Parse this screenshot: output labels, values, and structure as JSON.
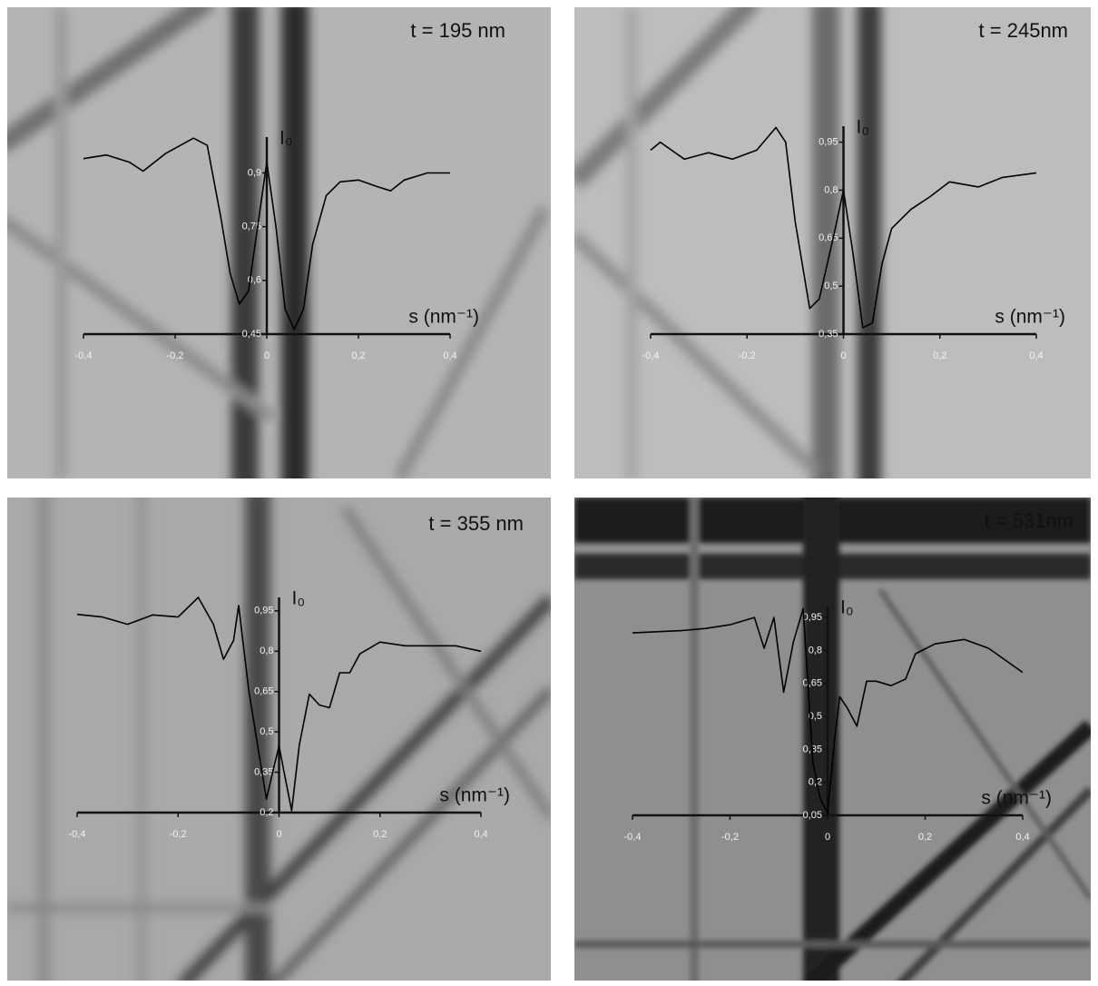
{
  "chart_data": [
    {
      "type": "line",
      "title": "t = 195 nm",
      "ylabel": "I₀",
      "xlabel": "s (nm⁻¹)",
      "color": "#000000",
      "x": [
        -0.4,
        -0.35,
        -0.3,
        -0.27,
        -0.22,
        -0.16,
        -0.13,
        -0.1,
        -0.08,
        -0.06,
        -0.04,
        -0.02,
        0,
        0.02,
        0.04,
        0.06,
        0.08,
        0.1,
        0.13,
        0.16,
        0.2,
        0.24,
        0.27,
        0.3,
        0.35,
        0.4
      ],
      "values": [
        0.94,
        0.95,
        0.93,
        0.905,
        0.955,
        0.997,
        0.977,
        0.774,
        0.62,
        0.534,
        0.57,
        0.75,
        0.93,
        0.75,
        0.52,
        0.463,
        0.52,
        0.7,
        0.837,
        0.875,
        0.88,
        0.862,
        0.85,
        0.88,
        0.9,
        0.9
      ],
      "xlim": [
        -0.4,
        0.4
      ],
      "ylim": [
        0.45,
        1.0
      ],
      "xticks": [
        {
          "value": -0.4,
          "label": "-0,4"
        },
        {
          "value": -0.2,
          "label": "-0,2"
        },
        0,
        {
          "value": 0.2,
          "label": "0,2"
        },
        {
          "value": 0.4,
          "label": "0,4"
        }
      ],
      "yticks": [
        {
          "value": 0.45,
          "label": "0,45"
        },
        {
          "value": 0.6,
          "label": "0,6"
        },
        {
          "value": 0.75,
          "label": "0,75"
        },
        {
          "value": 0.9,
          "label": "0,9"
        }
      ]
    },
    {
      "type": "line",
      "title": "t = 245nm",
      "ylabel": "I₀",
      "xlabel": "s (nm⁻¹)",
      "color": "#000000",
      "x": [
        -0.4,
        -0.38,
        -0.33,
        -0.28,
        -0.23,
        -0.18,
        -0.14,
        -0.12,
        -0.1,
        -0.07,
        -0.05,
        -0.02,
        0,
        0.02,
        0.04,
        0.06,
        0.08,
        0.1,
        0.14,
        0.18,
        0.22,
        0.28,
        0.33,
        0.4
      ],
      "values": [
        0.925,
        0.95,
        0.897,
        0.917,
        0.897,
        0.925,
        0.996,
        0.95,
        0.7,
        0.43,
        0.46,
        0.66,
        0.8,
        0.6,
        0.37,
        0.385,
        0.57,
        0.68,
        0.74,
        0.78,
        0.826,
        0.81,
        0.84,
        0.854
      ],
      "xlim": [
        -0.4,
        0.4
      ],
      "ylim": [
        0.35,
        1.0
      ],
      "xticks": [
        {
          "value": -0.4,
          "label": "-0,4"
        },
        {
          "value": -0.2,
          "label": "-0,2"
        },
        0,
        {
          "value": 0.2,
          "label": "0,2"
        },
        {
          "value": 0.4,
          "label": "0,4"
        }
      ],
      "yticks": [
        {
          "value": 0.35,
          "label": "0,35"
        },
        {
          "value": 0.5,
          "label": "0,5"
        },
        {
          "value": 0.65,
          "label": "0,65"
        },
        {
          "value": 0.8,
          "label": "0,8"
        },
        {
          "value": 0.95,
          "label": "0,95"
        }
      ]
    },
    {
      "type": "line",
      "title": "t = 355 nm",
      "ylabel": "I₀",
      "xlabel": "s (nm⁻¹)",
      "color": "#000000",
      "x": [
        -0.4,
        -0.35,
        -0.3,
        -0.25,
        -0.2,
        -0.16,
        -0.13,
        -0.11,
        -0.09,
        -0.08,
        -0.06,
        -0.04,
        -0.025,
        -0.01,
        0,
        0.01,
        0.025,
        0.04,
        0.06,
        0.08,
        0.1,
        0.12,
        0.14,
        0.16,
        0.2,
        0.25,
        0.3,
        0.35,
        0.4
      ],
      "values": [
        0.937,
        0.927,
        0.9,
        0.935,
        0.927,
        1.0,
        0.9,
        0.77,
        0.84,
        0.97,
        0.656,
        0.42,
        0.25,
        0.37,
        0.447,
        0.35,
        0.207,
        0.45,
        0.64,
        0.6,
        0.59,
        0.72,
        0.72,
        0.79,
        0.834,
        0.82,
        0.82,
        0.82,
        0.8
      ],
      "xlim": [
        -0.4,
        0.4
      ],
      "ylim": [
        0.2,
        1.0
      ],
      "xticks": [
        {
          "value": -0.4,
          "label": "-0,4"
        },
        {
          "value": -0.2,
          "label": "-0,2"
        },
        0,
        {
          "value": 0.2,
          "label": "0,2"
        },
        {
          "value": 0.4,
          "label": "0,4"
        }
      ],
      "yticks": [
        {
          "value": 0.2,
          "label": "0,2"
        },
        {
          "value": 0.35,
          "label": "0,35"
        },
        {
          "value": 0.5,
          "label": "0,5"
        },
        {
          "value": 0.65,
          "label": "0,65"
        },
        {
          "value": 0.8,
          "label": "0,8"
        },
        {
          "value": 0.95,
          "label": "0,95"
        }
      ]
    },
    {
      "type": "line",
      "title": "t = 531nm",
      "ylabel": "I₀",
      "xlabel": "s (nm⁻¹)",
      "color": "#000000",
      "x": [
        -0.4,
        -0.35,
        -0.3,
        -0.25,
        -0.2,
        -0.15,
        -0.13,
        -0.11,
        -0.09,
        -0.07,
        -0.05,
        -0.03,
        -0.015,
        0,
        0.015,
        0.025,
        0.04,
        0.06,
        0.08,
        0.1,
        0.13,
        0.16,
        0.18,
        0.22,
        0.28,
        0.33,
        0.4
      ],
      "values": [
        0.88,
        0.885,
        0.89,
        0.9,
        0.917,
        0.95,
        0.81,
        0.95,
        0.61,
        0.84,
        0.99,
        0.29,
        0.125,
        0.06,
        0.41,
        0.59,
        0.54,
        0.455,
        0.66,
        0.66,
        0.64,
        0.67,
        0.785,
        0.83,
        0.85,
        0.81,
        0.7
      ],
      "xlim": [
        -0.4,
        0.4
      ],
      "ylim": [
        0.05,
        1.0
      ],
      "xticks": [
        {
          "value": -0.4,
          "label": "-0,4"
        },
        {
          "value": -0.2,
          "label": "-0,2"
        },
        0,
        {
          "value": 0.2,
          "label": "0,2"
        },
        {
          "value": 0.4,
          "label": "0,4"
        }
      ],
      "yticks": [
        {
          "value": 0.05,
          "label": "0,05"
        },
        {
          "value": 0.2,
          "label": "0,2"
        },
        {
          "value": 0.35,
          "label": "0,35"
        },
        {
          "value": 0.5,
          "label": "0,5"
        },
        {
          "value": 0.65,
          "label": "0,65"
        },
        {
          "value": 0.8,
          "label": "0,8"
        },
        {
          "value": 0.95,
          "label": "0,95"
        }
      ]
    }
  ]
}
